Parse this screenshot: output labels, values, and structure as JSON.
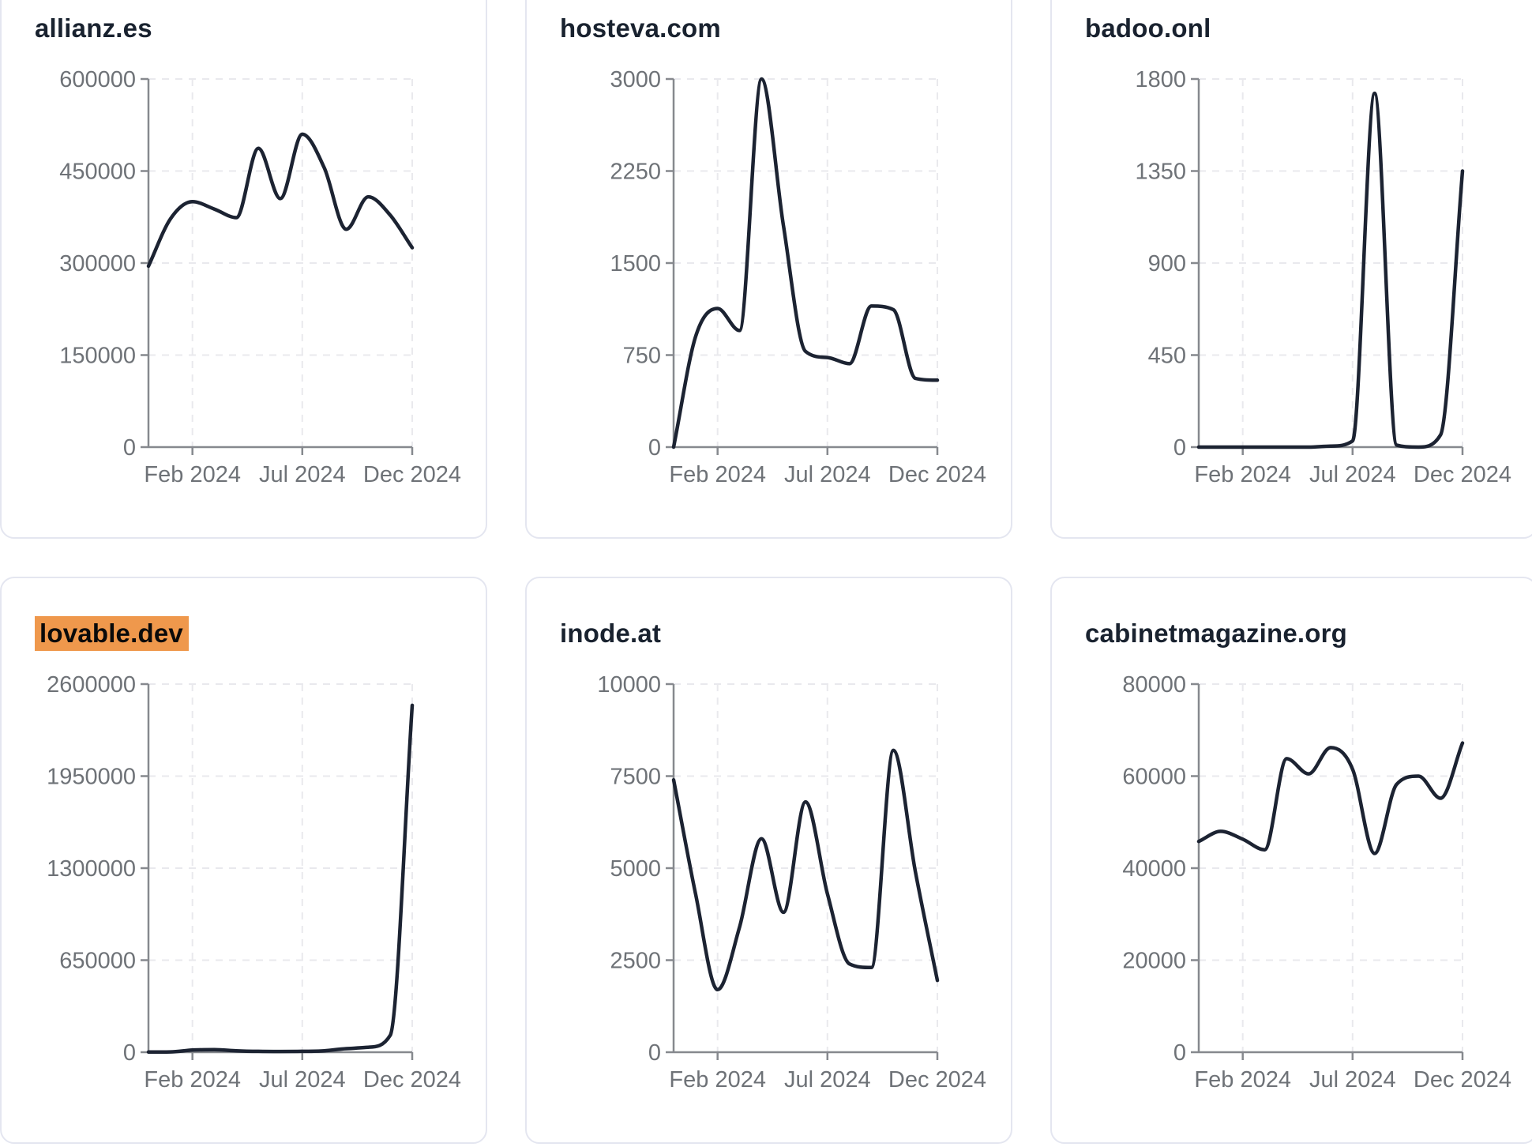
{
  "styles": {
    "line_color": "#1c2332",
    "title_color": "#19222f",
    "axis_color": "#86898e",
    "tick_label_color": "#6e7277",
    "grid_color": "#e9e9ed",
    "highlight_bg": "#ef984c",
    "highlight_text": "#0a0a0a",
    "card_border": "#e4e6f0",
    "card_bg": "#ffffff",
    "page_bg": "#ffffff"
  },
  "chart_data": [
    {
      "type": "line",
      "title": "allianz.es",
      "highlighted": false,
      "x": [
        "Dec 2023",
        "Jan 2024",
        "Feb 2024",
        "Mar 2024",
        "Apr 2024",
        "May 2024",
        "Jun 2024",
        "Jul 2024",
        "Aug 2024",
        "Sep 2024",
        "Oct 2024",
        "Nov 2024",
        "Dec 2024"
      ],
      "values": [
        295000,
        372000,
        400000,
        388000,
        374000,
        487000,
        405000,
        510000,
        455000,
        355000,
        408000,
        378000,
        325000
      ],
      "y_ticks": [
        0,
        150000,
        300000,
        450000,
        600000
      ],
      "ylim": [
        0,
        600000
      ],
      "x_tick_labels": [
        "Feb 2024",
        "Jul 2024",
        "Dec 2024"
      ],
      "x_tick_months": [
        2,
        7,
        12
      ],
      "grid": "dashed",
      "legend": "none"
    },
    {
      "type": "line",
      "title": "hosteva.com",
      "highlighted": false,
      "x": [
        "Dec 2023",
        "Jan 2024",
        "Feb 2024",
        "Mar 2024",
        "Apr 2024",
        "May 2024",
        "Jun 2024",
        "Jul 2024",
        "Aug 2024",
        "Sep 2024",
        "Oct 2024",
        "Nov 2024",
        "Dec 2024"
      ],
      "values": [
        0,
        900,
        1130,
        950,
        3000,
        1800,
        780,
        730,
        680,
        1150,
        1120,
        560,
        545
      ],
      "y_ticks": [
        0,
        750,
        1500,
        2250,
        3000
      ],
      "ylim": [
        0,
        3000
      ],
      "x_tick_labels": [
        "Feb 2024",
        "Jul 2024",
        "Dec 2024"
      ],
      "x_tick_months": [
        2,
        7,
        12
      ],
      "grid": "dashed",
      "legend": "none"
    },
    {
      "type": "line",
      "title": "badoo.onl",
      "highlighted": false,
      "x": [
        "Dec 2023",
        "Jan 2024",
        "Feb 2024",
        "Mar 2024",
        "Apr 2024",
        "May 2024",
        "Jun 2024",
        "Jul 2024",
        "Aug 2024",
        "Sep 2024",
        "Oct 2024",
        "Nov 2024",
        "Dec 2024"
      ],
      "values": [
        0,
        0,
        0,
        0,
        0,
        0,
        5,
        30,
        1730,
        10,
        0,
        60,
        1350
      ],
      "y_ticks": [
        0,
        450,
        900,
        1350,
        1800
      ],
      "ylim": [
        0,
        1800
      ],
      "x_tick_labels": [
        "Feb 2024",
        "Jul 2024",
        "Dec 2024"
      ],
      "x_tick_months": [
        2,
        7,
        12
      ],
      "grid": "dashed",
      "legend": "none"
    },
    {
      "type": "line",
      "title": "lovable.dev",
      "highlighted": true,
      "x": [
        "Dec 2023",
        "Jan 2024",
        "Feb 2024",
        "Mar 2024",
        "Apr 2024",
        "May 2024",
        "Jun 2024",
        "Jul 2024",
        "Aug 2024",
        "Sep 2024",
        "Oct 2024",
        "Nov 2024",
        "Dec 2024"
      ],
      "values": [
        1000,
        2000,
        15000,
        18000,
        10000,
        6000,
        5000,
        6000,
        10000,
        25000,
        35000,
        120000,
        2450000
      ],
      "y_ticks": [
        0,
        650000,
        1300000,
        1950000,
        2600000
      ],
      "ylim": [
        0,
        2600000
      ],
      "x_tick_labels": [
        "Feb 2024",
        "Jul 2024",
        "Dec 2024"
      ],
      "x_tick_months": [
        2,
        7,
        12
      ],
      "grid": "dashed",
      "legend": "none"
    },
    {
      "type": "line",
      "title": "inode.at",
      "highlighted": false,
      "x": [
        "Dec 2023",
        "Jan 2024",
        "Feb 2024",
        "Mar 2024",
        "Apr 2024",
        "May 2024",
        "Jun 2024",
        "Jul 2024",
        "Aug 2024",
        "Sep 2024",
        "Oct 2024",
        "Nov 2024",
        "Dec 2024"
      ],
      "values": [
        7400,
        4300,
        1700,
        3400,
        5800,
        3800,
        6800,
        4300,
        2400,
        2300,
        8200,
        4900,
        1950
      ],
      "y_ticks": [
        0,
        2500,
        5000,
        7500,
        10000
      ],
      "ylim": [
        0,
        10000
      ],
      "x_tick_labels": [
        "Feb 2024",
        "Jul 2024",
        "Dec 2024"
      ],
      "x_tick_months": [
        2,
        7,
        12
      ],
      "grid": "dashed",
      "legend": "none"
    },
    {
      "type": "line",
      "title": "cabinetmagazine.org",
      "highlighted": false,
      "x": [
        "Dec 2023",
        "Jan 2024",
        "Feb 2024",
        "Mar 2024",
        "Apr 2024",
        "May 2024",
        "Jun 2024",
        "Jul 2024",
        "Aug 2024",
        "Sep 2024",
        "Oct 2024",
        "Nov 2024",
        "Dec 2024"
      ],
      "values": [
        45800,
        48000,
        46300,
        44000,
        63800,
        60500,
        66200,
        61500,
        43200,
        58200,
        60000,
        55200,
        67200
      ],
      "y_ticks": [
        0,
        20000,
        40000,
        60000,
        80000
      ],
      "ylim": [
        0,
        80000
      ],
      "x_tick_labels": [
        "Feb 2024",
        "Jul 2024",
        "Dec 2024"
      ],
      "x_tick_months": [
        2,
        7,
        12
      ],
      "grid": "dashed",
      "legend": "none"
    }
  ]
}
